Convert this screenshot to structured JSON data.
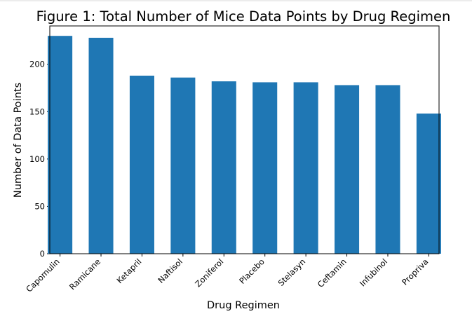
{
  "chart_data": {
    "type": "bar",
    "title": "Figure 1: Total Number of Mice Data Points by Drug Regimen",
    "xlabel": "Drug Regimen",
    "ylabel": "Number of Data Points",
    "categories": [
      "Capomulin",
      "Ramicane",
      "Ketapril",
      "Naftisol",
      "Zoniferol",
      "Placebo",
      "Stelasyn",
      "Ceftamin",
      "Infubinol",
      "Propriva"
    ],
    "values": [
      230,
      228,
      188,
      186,
      182,
      181,
      181,
      178,
      178,
      148
    ],
    "ylim": [
      0,
      240.5
    ],
    "yticks": [
      0,
      50,
      100,
      150,
      200
    ],
    "bar_color": "#1f77b4",
    "grid": false,
    "legend": "none"
  }
}
